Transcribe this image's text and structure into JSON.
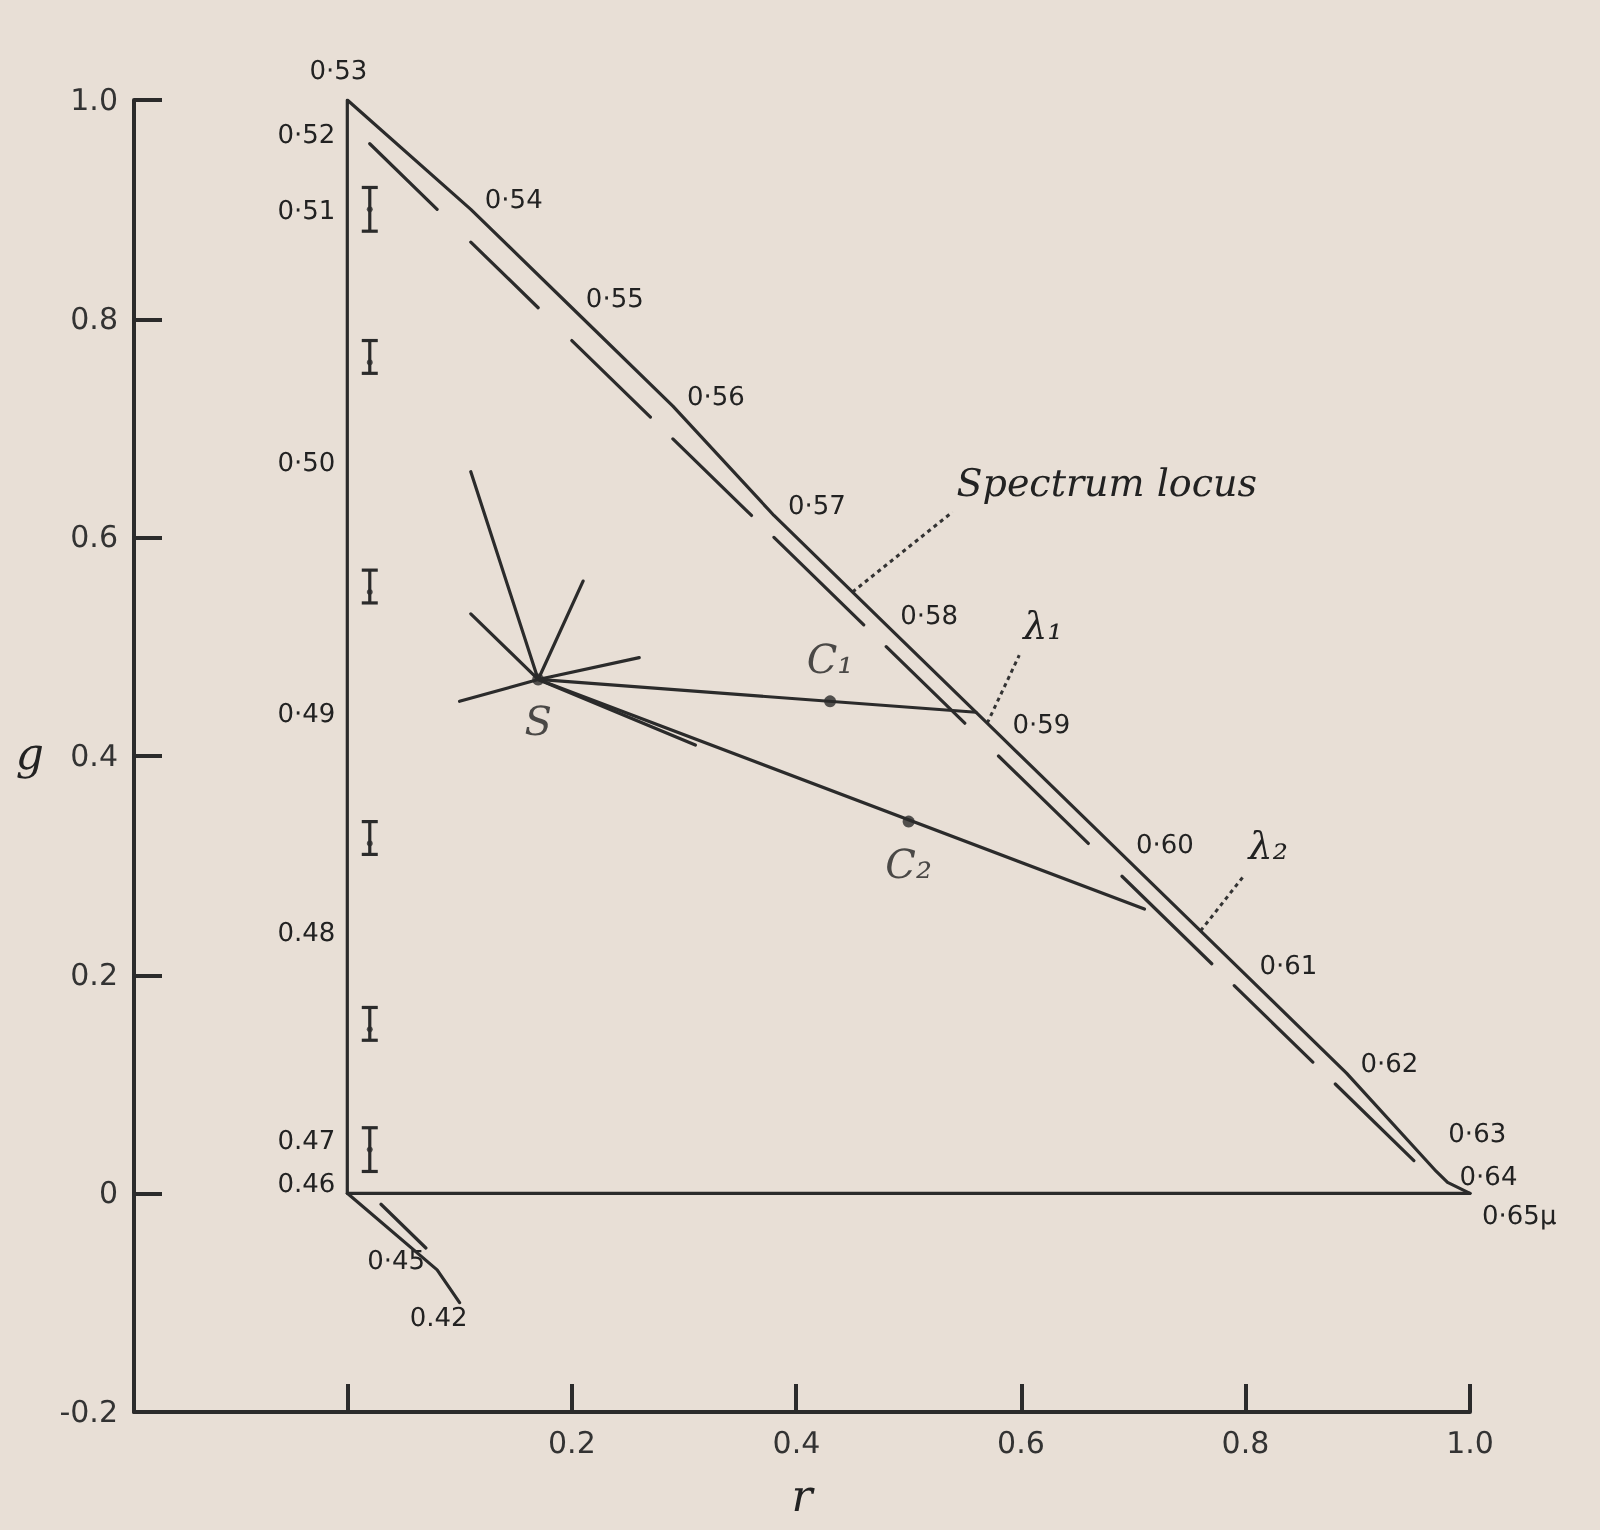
{
  "chart_data": {
    "type": "line",
    "xlabel": "r",
    "ylabel": "g",
    "xlim": [
      -0.19,
      1.0
    ],
    "ylim": [
      -0.2,
      1.0
    ],
    "xticks": [
      {
        "value": 0,
        "label": null
      },
      0.2,
      0.4,
      0.6,
      0.8,
      {
        "value": 1.0,
        "label": "1.0"
      }
    ],
    "yticks": [
      -0.2,
      0,
      0.2,
      0.4,
      0.6,
      0.8,
      {
        "value": 1.0,
        "label": "1.0"
      }
    ],
    "series": [
      {
        "color": "#2b2b2b",
        "marker": "none",
        "x": [
          0.1,
          0.08,
          0,
          0,
          0,
          0,
          0,
          0,
          0,
          0,
          0.11,
          0.2,
          0.29,
          0.38,
          0.48,
          0.58,
          0.69,
          0.8,
          0.89,
          0.97,
          0.98,
          1.0
        ],
        "values": [
          -0.1,
          -0.07,
          0,
          0.04,
          0.23,
          0.43,
          0.66,
          0.89,
          0.96,
          1.0,
          0.9,
          0.81,
          0.72,
          0.62,
          0.52,
          0.42,
          0.31,
          0.2,
          0.11,
          0.02,
          0.01,
          0
        ]
      },
      {
        "color": "#2b2b2b",
        "marker": "none",
        "x": [
          0,
          1.0
        ],
        "values": [
          0,
          0
        ]
      },
      {
        "color": "#2b2b2b",
        "marker": "none",
        "x": [
          0.02,
          0.08,
          null,
          0.11,
          0.17,
          null,
          0.2,
          0.27,
          null,
          0.29,
          0.36,
          null,
          0.38,
          0.46,
          null,
          0.48,
          0.55,
          null,
          0.58,
          0.66,
          null,
          0.69,
          0.77,
          null,
          0.79,
          0.86,
          null,
          0.88,
          0.95,
          null,
          0.03,
          0.07
        ],
        "values": [
          0.96,
          0.9,
          null,
          0.87,
          0.81,
          null,
          0.78,
          0.71,
          null,
          0.69,
          0.62,
          null,
          0.6,
          0.52,
          null,
          0.5,
          0.43,
          null,
          0.4,
          0.32,
          null,
          0.29,
          0.21,
          null,
          0.19,
          0.12,
          null,
          0.1,
          0.03,
          null,
          -0.01,
          -0.05
        ]
      },
      {
        "color": "#2b2b2b",
        "marker": "none",
        "x": [
          0.17,
          0.11,
          0.17,
          0.11,
          0.17,
          0.21,
          0.17,
          0.26,
          0.17,
          0.1,
          0.17,
          0.31
        ],
        "values": [
          0.47,
          0.66,
          0.47,
          0.53,
          0.47,
          0.56,
          0.47,
          0.49,
          0.47,
          0.45,
          0.47,
          0.41
        ]
      },
      {
        "color": "#2b2b2b",
        "marker": "none",
        "x": [
          0.17,
          0.56
        ],
        "values": [
          0.47,
          0.44
        ]
      },
      {
        "color": "#2b2b2b",
        "marker": "none",
        "x": [
          0.17,
          0.71
        ],
        "values": [
          0.47,
          0.26
        ]
      },
      {
        "type": "scatter",
        "name": "S",
        "color": "#2b2b2b",
        "marker": "circle",
        "x": [
          0.17
        ],
        "values": [
          0.47
        ]
      },
      {
        "type": "scatter",
        "name": "C₁",
        "color": "#2b2b2b",
        "marker": "circle",
        "x": [
          0.43
        ],
        "values": [
          0.45
        ]
      },
      {
        "type": "scatter",
        "name": "C₂",
        "color": "#2b2b2b",
        "marker": "circle",
        "x": [
          0.5
        ],
        "values": [
          0.34
        ]
      },
      {
        "type": "scatter",
        "color": "#2b2b2b",
        "marker": "circle",
        "x": [
          0.02,
          0.02,
          0.02,
          0.02,
          0.02,
          0.02
        ],
        "values": [
          0.9,
          0.76,
          0.55,
          0.32,
          0.15,
          0.04
        ],
        "errors": [
          [
            0.88,
            0.92
          ],
          [
            0.75,
            0.78
          ],
          [
            0.54,
            0.57
          ],
          [
            0.31,
            0.34
          ],
          [
            0.14,
            0.17
          ],
          [
            0.02,
            0.06
          ]
        ]
      }
    ],
    "annotations": [
      {
        "text": "0.42",
        "x": 0.1,
        "y": -0.1
      },
      {
        "text": "0·45",
        "x": 0.08,
        "y": -0.07
      },
      {
        "text": "0.46",
        "x": 0,
        "y": 0
      },
      {
        "text": "0.47",
        "x": 0,
        "y": 0.04
      },
      {
        "text": "0.48",
        "x": 0,
        "y": 0.23
      },
      {
        "text": "0·49",
        "x": 0,
        "y": 0.43
      },
      {
        "text": "0·50",
        "x": 0,
        "y": 0.66
      },
      {
        "text": "0·51",
        "x": 0,
        "y": 0.89
      },
      {
        "text": "0·52",
        "x": 0,
        "y": 0.96
      },
      {
        "text": "0·53",
        "x": 0,
        "y": 1.0
      },
      {
        "text": "0·54",
        "x": 0.11,
        "y": 0.9
      },
      {
        "text": "0·55",
        "x": 0.2,
        "y": 0.81
      },
      {
        "text": "0·56",
        "x": 0.29,
        "y": 0.72
      },
      {
        "text": "0·57",
        "x": 0.38,
        "y": 0.62
      },
      {
        "text": "0·58",
        "x": 0.48,
        "y": 0.52
      },
      {
        "text": "0·59",
        "x": 0.58,
        "y": 0.42
      },
      {
        "text": "0·60",
        "x": 0.69,
        "y": 0.31
      },
      {
        "text": "0·61",
        "x": 0.8,
        "y": 0.2
      },
      {
        "text": "0·62",
        "x": 0.89,
        "y": 0.11
      },
      {
        "text": "0·63",
        "x": 0.97,
        "y": 0.02
      },
      {
        "text": "0·64",
        "x": 0.98,
        "y": 0.01
      },
      {
        "text": "0·65μ",
        "x": 1.0,
        "y": 0
      },
      {
        "text": "Spectrum locus",
        "x": 0.45,
        "y": 0.55
      },
      {
        "text": "λ₁",
        "x": 0.57,
        "y": 0.43
      },
      {
        "text": "λ₂",
        "x": 0.76,
        "y": 0.24
      }
    ]
  }
}
